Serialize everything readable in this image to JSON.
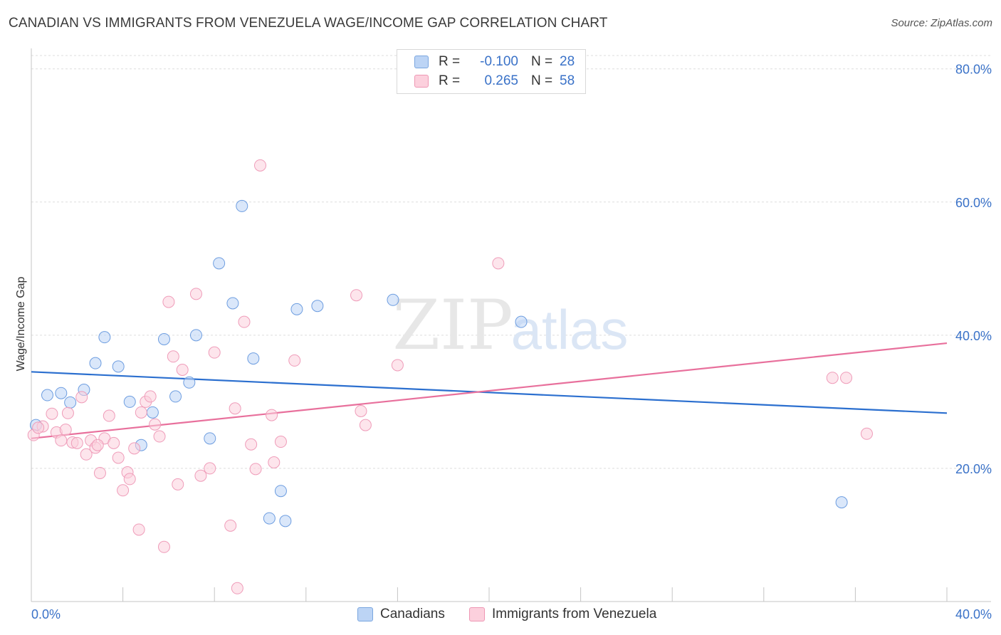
{
  "title": "CANADIAN VS IMMIGRANTS FROM VENEZUELA WAGE/INCOME GAP CORRELATION CHART",
  "source": "Source: ZipAtlas.com",
  "watermark": {
    "zip": "ZIP",
    "atlas": "atlas"
  },
  "legend_top": {
    "rows": [
      {
        "r_label": "R =",
        "r_value": "-0.100",
        "n_label": "N =",
        "n_value": "28"
      },
      {
        "r_label": "R =",
        "r_value": "0.265",
        "n_label": "N =",
        "n_value": "58"
      }
    ]
  },
  "colors": {
    "blue_fill": "#bcd4f5",
    "blue_stroke": "#6d9de0",
    "blue_line": "#2b6fcf",
    "pink_fill": "#fcd0dd",
    "pink_stroke": "#ef9cb9",
    "pink_line": "#e8709c",
    "axis_text": "#3a72c8",
    "grid": "#dedede"
  },
  "chart_data": {
    "type": "scatter",
    "title": "CANADIAN VS IMMIGRANTS FROM VENEZUELA WAGE/INCOME GAP CORRELATION CHART",
    "xlabel": "",
    "ylabel": "Wage/Income Gap",
    "xlim": [
      0,
      40
    ],
    "ylim": [
      0,
      82
    ],
    "x_tick_labels": [
      {
        "value": 0,
        "label": "0.0%"
      },
      {
        "value": 40,
        "label": "40.0%"
      }
    ],
    "y_tick_labels": [
      {
        "value": 20,
        "label": "20.0%"
      },
      {
        "value": 40,
        "label": "40.0%"
      },
      {
        "value": 60,
        "label": "60.0%"
      },
      {
        "value": 80,
        "label": "80.0%"
      }
    ],
    "series": [
      {
        "name": "Canadians",
        "color": "blue",
        "R": -0.1,
        "N": 28,
        "trend": {
          "x": [
            0,
            40
          ],
          "y": [
            34.5,
            28.3
          ]
        },
        "points": [
          [
            0.2,
            26.5
          ],
          [
            0.7,
            31.0
          ],
          [
            1.3,
            31.3
          ],
          [
            1.7,
            29.9
          ],
          [
            2.3,
            31.8
          ],
          [
            2.8,
            35.8
          ],
          [
            3.2,
            39.7
          ],
          [
            3.8,
            35.3
          ],
          [
            4.3,
            30.0
          ],
          [
            4.8,
            23.5
          ],
          [
            5.3,
            28.4
          ],
          [
            5.8,
            39.4
          ],
          [
            6.3,
            30.8
          ],
          [
            6.9,
            32.9
          ],
          [
            7.2,
            40.0
          ],
          [
            7.8,
            24.5
          ],
          [
            8.2,
            50.8
          ],
          [
            8.8,
            44.8
          ],
          [
            9.2,
            59.4
          ],
          [
            9.7,
            36.5
          ],
          [
            10.4,
            12.5
          ],
          [
            10.9,
            16.6
          ],
          [
            11.1,
            12.1
          ],
          [
            11.6,
            43.9
          ],
          [
            12.5,
            44.4
          ],
          [
            15.8,
            45.3
          ],
          [
            21.4,
            42.0
          ],
          [
            35.4,
            14.9
          ]
        ]
      },
      {
        "name": "Immigrants from Venezuela",
        "color": "pink",
        "R": 0.265,
        "N": 58,
        "trend": {
          "x": [
            0,
            40
          ],
          "y": [
            24.5,
            38.8
          ]
        },
        "points": [
          [
            0.1,
            25.0
          ],
          [
            0.5,
            26.3
          ],
          [
            0.9,
            28.2
          ],
          [
            1.1,
            25.4
          ],
          [
            1.3,
            24.2
          ],
          [
            1.5,
            25.8
          ],
          [
            1.6,
            28.3
          ],
          [
            1.8,
            23.9
          ],
          [
            2.0,
            23.8
          ],
          [
            2.2,
            30.7
          ],
          [
            2.4,
            22.1
          ],
          [
            2.6,
            24.2
          ],
          [
            2.8,
            23.1
          ],
          [
            3.0,
            19.3
          ],
          [
            3.2,
            24.5
          ],
          [
            3.4,
            27.9
          ],
          [
            3.6,
            23.8
          ],
          [
            3.8,
            21.6
          ],
          [
            4.0,
            16.7
          ],
          [
            4.2,
            19.4
          ],
          [
            4.3,
            18.4
          ],
          [
            4.5,
            23.0
          ],
          [
            4.7,
            10.8
          ],
          [
            4.8,
            28.4
          ],
          [
            5.0,
            30.0
          ],
          [
            5.2,
            30.8
          ],
          [
            5.4,
            26.6
          ],
          [
            5.6,
            24.8
          ],
          [
            5.8,
            8.2
          ],
          [
            6.0,
            45.0
          ],
          [
            6.2,
            36.8
          ],
          [
            6.4,
            17.6
          ],
          [
            6.6,
            34.8
          ],
          [
            7.2,
            46.2
          ],
          [
            7.4,
            18.9
          ],
          [
            7.8,
            20.0
          ],
          [
            8.0,
            37.4
          ],
          [
            8.7,
            11.4
          ],
          [
            8.9,
            29.0
          ],
          [
            9.0,
            2.0
          ],
          [
            9.3,
            42.0
          ],
          [
            9.6,
            23.6
          ],
          [
            9.8,
            19.9
          ],
          [
            10.0,
            65.5
          ],
          [
            10.5,
            28.0
          ],
          [
            10.6,
            20.9
          ],
          [
            10.9,
            24.0
          ],
          [
            11.5,
            36.2
          ],
          [
            14.2,
            46.0
          ],
          [
            14.4,
            28.6
          ],
          [
            14.6,
            26.5
          ],
          [
            16.0,
            35.5
          ],
          [
            20.4,
            50.8
          ],
          [
            35.0,
            33.6
          ],
          [
            35.6,
            33.6
          ],
          [
            36.5,
            25.2
          ],
          [
            0.3,
            26.1
          ],
          [
            2.9,
            23.5
          ]
        ]
      }
    ]
  },
  "legend_bottom": {
    "items": [
      "Canadians",
      "Immigrants from Venezuela"
    ]
  }
}
